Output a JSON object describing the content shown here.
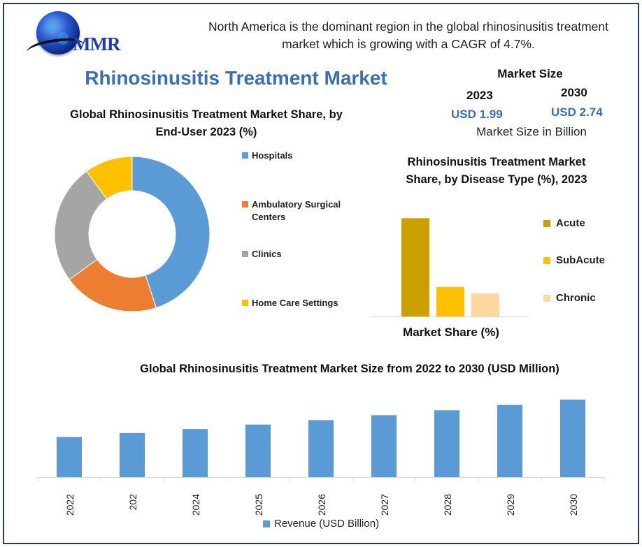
{
  "header": {
    "logo_text": "MMR",
    "headline": "North America is the dominant region in the global rhinosinusitis treatment market which is growing with a CAGR of 4.7%.",
    "main_title": "Rhinosinusitis Treatment Market"
  },
  "market_size": {
    "title": "Market Size",
    "year_a": "2023",
    "value_a": "USD 1.99",
    "year_b": "2030",
    "value_b": "USD 2.74",
    "note": "Market Size in Billion"
  },
  "chart_data": [
    {
      "type": "pie",
      "title": "Global Rhinosinusitis Treatment Market Share, by End-User 2023 (%)",
      "donut": true,
      "legend_position": "right",
      "categories": [
        "Hospitals",
        "Ambulatory Surgical Centers",
        "Clinics",
        "Home Care Settings"
      ],
      "values": [
        45,
        20,
        25,
        10
      ],
      "colors": [
        "#5b9bd5",
        "#ed7d31",
        "#a5a5a5",
        "#ffc000"
      ]
    },
    {
      "type": "bar",
      "title": "Rhinosinusitis Treatment Market Share, by Disease Type (%), 2023",
      "xlabel": "Market Share (%)",
      "legend_position": "right",
      "categories": [
        "Acute",
        "SubAcute",
        "Chronic"
      ],
      "values": [
        60,
        18,
        14
      ],
      "ylim": [
        0,
        64
      ],
      "colors": [
        "#c9a000",
        "#ffc000",
        "#ffd8a0"
      ]
    },
    {
      "type": "bar",
      "title": "Global Rhinosinusitis Treatment Market Size from 2022 to 2030 (USD Million)",
      "categories": [
        "2022",
        "202",
        "2024",
        "2025",
        "2026",
        "2027",
        "2028",
        "2029",
        "2030"
      ],
      "series": [
        {
          "name": "Revenue (USD Billion)",
          "values": [
            1.9,
            1.99,
            2.08,
            2.18,
            2.28,
            2.39,
            2.5,
            2.62,
            2.74
          ]
        }
      ],
      "ylim": [
        1.0,
        2.85
      ],
      "legend_position": "bottom",
      "color": "#5b9bd5"
    }
  ]
}
